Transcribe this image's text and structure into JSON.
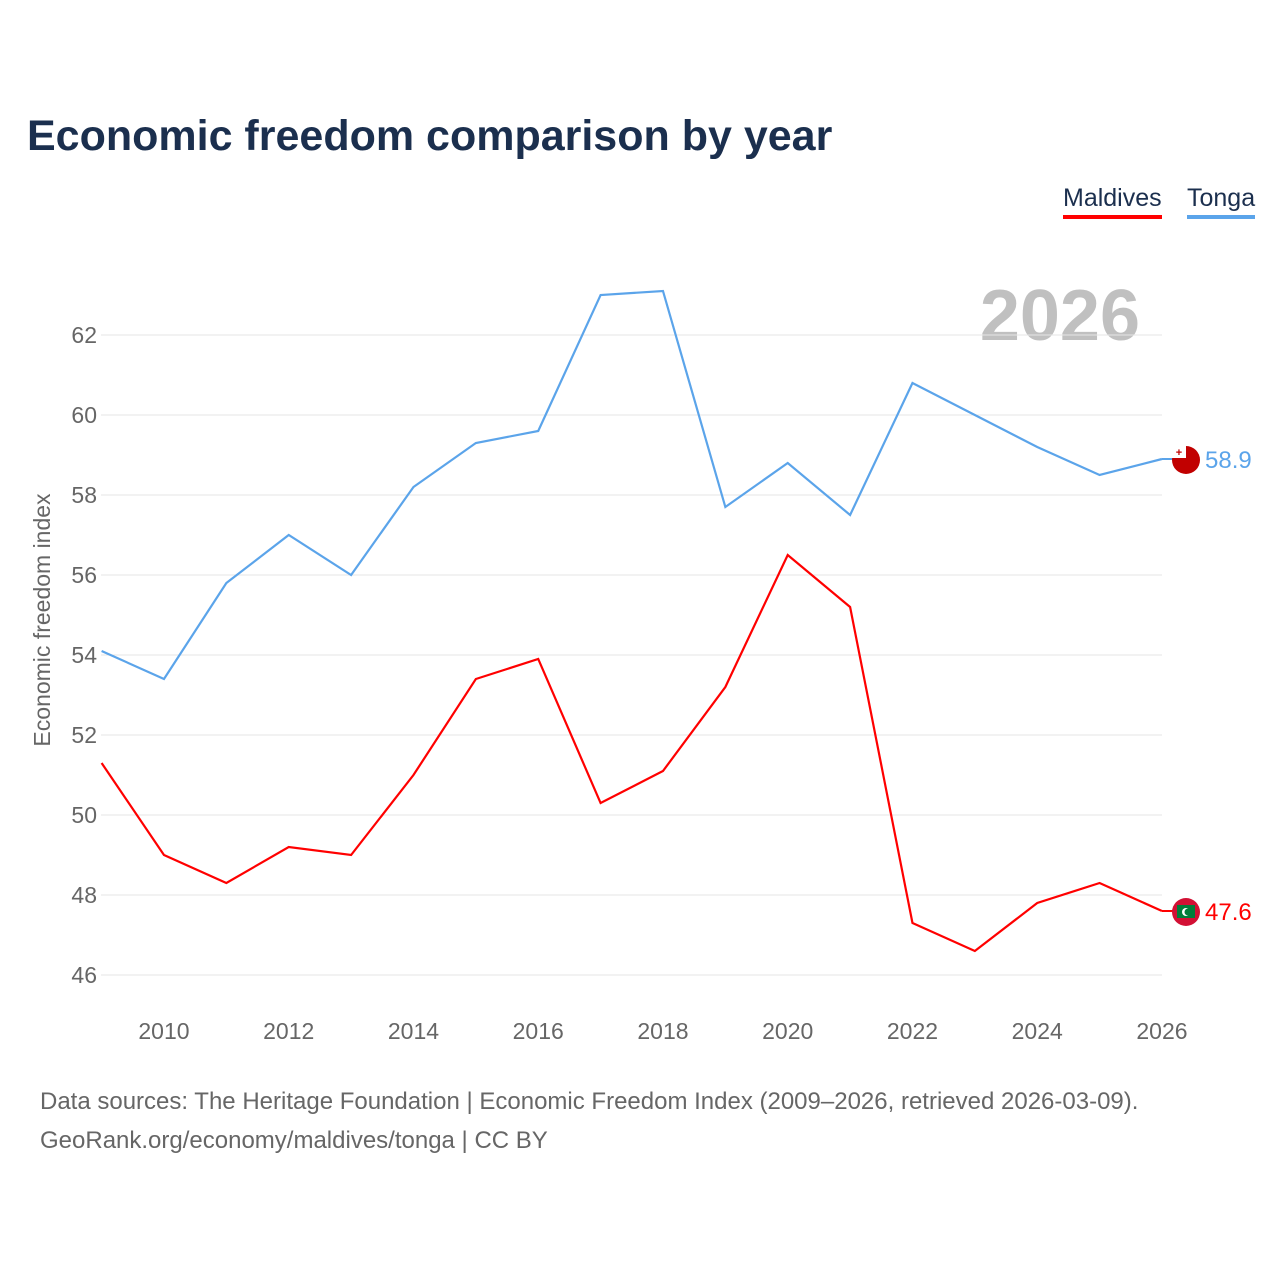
{
  "title": "Economic freedom comparison by year",
  "footer": {
    "line1": "Data sources: The Heritage Foundation | Economic Freedom Index (2009–2026, retrieved 2026-03-09).",
    "line2": "GeoRank.org/economy/maldives/tonga | CC BY"
  },
  "chart_data": {
    "type": "line",
    "title": "Economic freedom comparison by year",
    "watermark_year": "2026",
    "xlabel": "",
    "ylabel": "Economic freedom index",
    "x": [
      2009,
      2010,
      2011,
      2012,
      2013,
      2014,
      2015,
      2016,
      2017,
      2018,
      2019,
      2020,
      2021,
      2022,
      2023,
      2024,
      2025,
      2026
    ],
    "xticks": [
      "2010",
      "2012",
      "2014",
      "2016",
      "2018",
      "2020",
      "2022",
      "2024",
      "2026"
    ],
    "yticks": [
      "46",
      "48",
      "50",
      "52",
      "54",
      "56",
      "58",
      "60",
      "62"
    ],
    "ylim": [
      45,
      63.5
    ],
    "xlim": [
      2009,
      2026
    ],
    "grid": true,
    "legend_position": "top-right",
    "series": [
      {
        "name": "Maldives",
        "color": "#ff0000",
        "end_label": "47.6",
        "values": [
          51.3,
          49.0,
          48.3,
          49.2,
          49.0,
          51.0,
          53.4,
          53.9,
          50.3,
          51.1,
          53.2,
          56.5,
          55.2,
          47.3,
          46.6,
          47.8,
          48.3,
          47.6
        ]
      },
      {
        "name": "Tonga",
        "color": "#5ba4ea",
        "end_label": "58.9",
        "values": [
          54.1,
          53.4,
          55.8,
          57.0,
          56.0,
          58.2,
          59.3,
          59.6,
          63.0,
          63.1,
          57.7,
          58.8,
          57.5,
          60.8,
          60.0,
          59.2,
          58.5,
          58.9
        ]
      }
    ]
  }
}
